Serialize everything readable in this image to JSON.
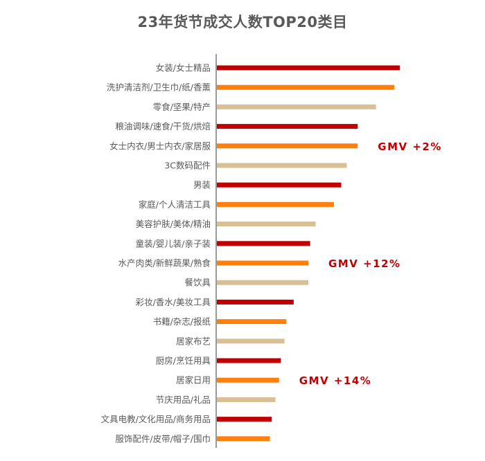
{
  "chart_data": {
    "type": "bar",
    "orientation": "horizontal",
    "title": "23年货节成交人数TOP20类目",
    "categories": [
      "女装/女士精品",
      "洗护清洁剂/卫生巾/纸/香薰",
      "零食/坚果/特产",
      "粮油调味/速食/干货/烘焙",
      "女士内衣/男士内衣/家居服",
      "3C数码配件",
      "男装",
      "家庭/个人清洁工具",
      "美容护肤/美体/精油",
      "童装/婴儿装/亲子装",
      "水产肉类/新鲜蔬果/熟食",
      "餐饮具",
      "彩妆/香水/美妆工具",
      "书籍/杂志/报纸",
      "居家布艺",
      "厨房/烹饪用具",
      "居家日用",
      "节庆用品/礼品",
      "文具电教/文化用品/商务用品",
      "服饰配件/皮带/帽子/围巾"
    ],
    "values": [
      100,
      97,
      87,
      77,
      77,
      71,
      68,
      64,
      54,
      51,
      50,
      50,
      42,
      38,
      37,
      35,
      34,
      32,
      30,
      29
    ],
    "xlim": [
      0,
      100
    ],
    "bar_colors": [
      "#c00000",
      "#ff7f0e",
      "#d9bf94",
      "#c00000",
      "#ff7f0e",
      "#d9bf94",
      "#c00000",
      "#ff7f0e",
      "#d9bf94",
      "#c00000",
      "#ff7f0e",
      "#d9bf94",
      "#c00000",
      "#ff7f0e",
      "#d9bf94",
      "#c00000",
      "#ff7f0e",
      "#d9bf94",
      "#c00000",
      "#ff7f0e"
    ],
    "annotations": [
      {
        "text": "GMV +2%",
        "category_index": 4
      },
      {
        "text": "GMV +12%",
        "category_index": 10
      },
      {
        "text": "GMV +14%",
        "category_index": 16
      }
    ],
    "grid": false,
    "legend": false
  }
}
